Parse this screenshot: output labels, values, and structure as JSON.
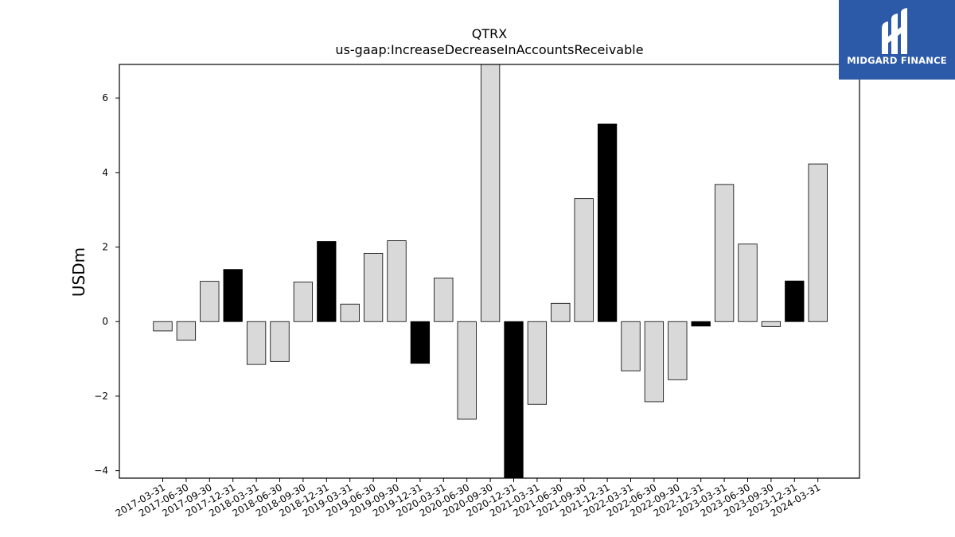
{
  "brand": {
    "name": "MIDGARD FINANCE",
    "background": "#2c5aa8"
  },
  "chart_data": {
    "type": "bar",
    "title": "QTRX",
    "subtitle": "us-gaap:IncreaseDecreaseInAccountsReceivable",
    "xlabel": "",
    "ylabel": "USDm",
    "ylim": [
      -4.2,
      6.9
    ],
    "yticks": [
      -4,
      -2,
      0,
      2,
      4,
      6
    ],
    "grid": false,
    "categories": [
      "2017-03-31",
      "2017-06-30",
      "2017-09-30",
      "2017-12-31",
      "2018-03-31",
      "2018-06-30",
      "2018-09-30",
      "2018-12-31",
      "2019-03-31",
      "2019-06-30",
      "2019-09-30",
      "2019-12-31",
      "2020-03-31",
      "2020-06-30",
      "2020-09-30",
      "2020-12-31",
      "2021-03-31",
      "2021-06-30",
      "2021-09-30",
      "2021-12-31",
      "2022-03-31",
      "2022-06-30",
      "2022-09-30",
      "2022-12-31",
      "2023-03-31",
      "2023-06-30",
      "2023-09-30",
      "2023-12-31",
      "2024-03-31"
    ],
    "values": [
      -0.25,
      -0.5,
      1.08,
      1.4,
      -1.15,
      -1.07,
      1.06,
      2.15,
      0.47,
      1.83,
      2.17,
      -1.12,
      1.17,
      -2.62,
      7.2,
      -4.5,
      -2.22,
      0.49,
      3.3,
      5.3,
      -1.32,
      -2.15,
      -1.56,
      -0.12,
      3.68,
      2.08,
      -0.13,
      1.09,
      4.23
    ],
    "highlight": [
      false,
      false,
      false,
      true,
      false,
      false,
      false,
      true,
      false,
      false,
      false,
      true,
      false,
      false,
      false,
      true,
      false,
      false,
      false,
      true,
      false,
      false,
      false,
      true,
      false,
      false,
      false,
      true,
      false
    ],
    "colors": {
      "bar": "#d9d9d9",
      "highlight": "#000000",
      "edge": "#000000"
    }
  }
}
